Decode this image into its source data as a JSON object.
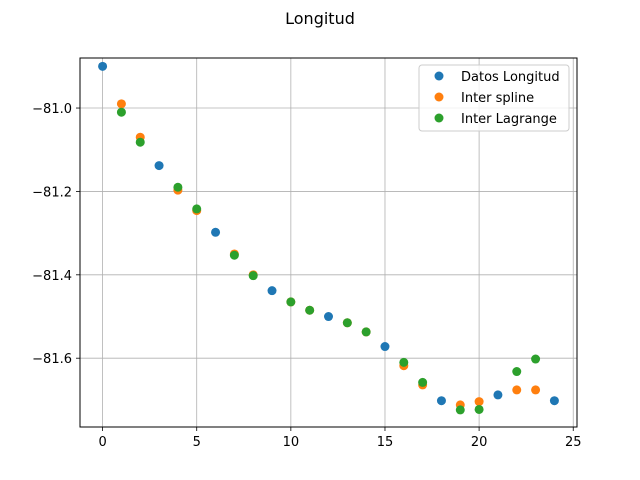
{
  "chart_data": {
    "type": "scatter",
    "title": "Longitud",
    "xlabel": "",
    "ylabel": "",
    "xlim": [
      -1.2,
      25.2
    ],
    "ylim": [
      -81.765,
      -80.88
    ],
    "xticks": [
      0,
      5,
      10,
      15,
      20,
      25
    ],
    "yticks": [
      -81.6,
      -81.4,
      -81.2,
      -81.0
    ],
    "ytick_labels": [
      "−81.6",
      "−81.4",
      "−81.2",
      "−81.0"
    ],
    "grid": true,
    "legend_position": "top-right",
    "series": [
      {
        "name": "Datos Longitud",
        "color": "#1f77b4",
        "x": [
          0,
          3,
          6,
          9,
          12,
          15,
          18,
          21,
          24
        ],
        "y": [
          -80.9,
          -81.138,
          -81.298,
          -81.438,
          -81.5,
          -81.572,
          -81.702,
          -81.688,
          -81.702
        ]
      },
      {
        "name": "Inter spline",
        "color": "#ff7f0e",
        "x": [
          1,
          2,
          4,
          5,
          7,
          8,
          10,
          11,
          13,
          14,
          16,
          17,
          19,
          20,
          22,
          23
        ],
        "y": [
          -80.99,
          -81.07,
          -81.197,
          -81.246,
          -81.35,
          -81.4,
          -81.465,
          -81.485,
          -81.515,
          -81.537,
          -81.618,
          -81.664,
          -81.712,
          -81.704,
          -81.676,
          -81.676
        ]
      },
      {
        "name": "Inter Lagrange",
        "color": "#2ca02c",
        "x": [
          1,
          2,
          4,
          5,
          7,
          8,
          10,
          11,
          13,
          14,
          16,
          17,
          19,
          20,
          22,
          23
        ],
        "y": [
          -81.01,
          -81.082,
          -81.19,
          -81.242,
          -81.353,
          -81.402,
          -81.465,
          -81.485,
          -81.515,
          -81.537,
          -81.61,
          -81.658,
          -81.724,
          -81.723,
          -81.632,
          -81.602
        ]
      }
    ]
  }
}
